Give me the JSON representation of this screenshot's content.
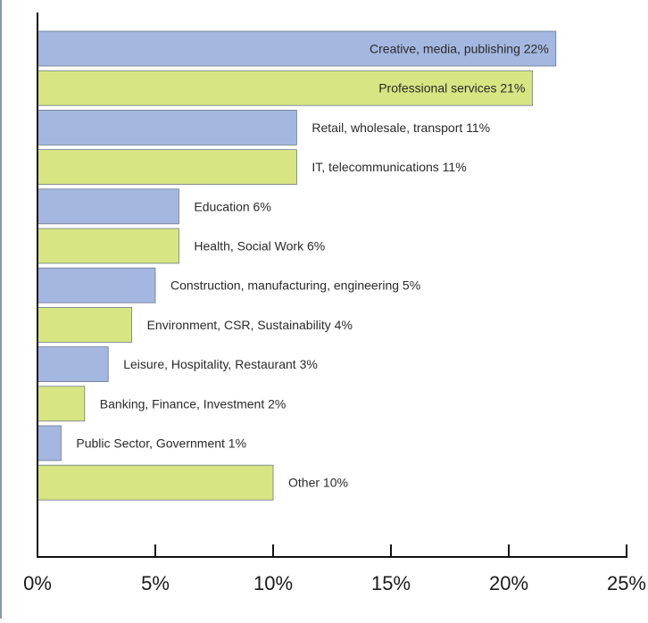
{
  "chart_data": {
    "type": "bar",
    "orientation": "horizontal",
    "categories": [
      "Creative, media, publishing 22%",
      "Professional services 21%",
      "Retail, wholesale, transport 11%",
      "IT, telecommunications 11%",
      "Education 6%",
      "Health, Social Work 6%",
      "Construction, manufacturing, engineering 5%",
      "Environment, CSR, Sustainability 4%",
      "Leisure, Hospitality, Restaurant 3%",
      "Banking, Finance, Investment 2%",
      "Public Sector, Government 1%",
      "Other 10%"
    ],
    "values": [
      22,
      21,
      11,
      11,
      6,
      6,
      5,
      4,
      3,
      2,
      1,
      10
    ],
    "label_inside": [
      true,
      true,
      false,
      false,
      false,
      false,
      false,
      false,
      false,
      false,
      false,
      false
    ],
    "bar_colors": [
      "#a4b7e0",
      "#d7e682",
      "#a4b7e0",
      "#d7e682",
      "#a4b7e0",
      "#d7e682",
      "#a4b7e0",
      "#d7e682",
      "#a4b7e0",
      "#d7e682",
      "#a4b7e0",
      "#d7e682"
    ],
    "bar_stroke": "#6b7a8c",
    "xlim": [
      0,
      25
    ],
    "xticks": [
      0,
      5,
      10,
      15,
      20,
      25
    ],
    "xtick_labels": [
      "0%",
      "5%",
      "10%",
      "15%",
      "20%",
      "25%"
    ],
    "grid": false,
    "title": "",
    "xlabel": "",
    "ylabel": ""
  }
}
